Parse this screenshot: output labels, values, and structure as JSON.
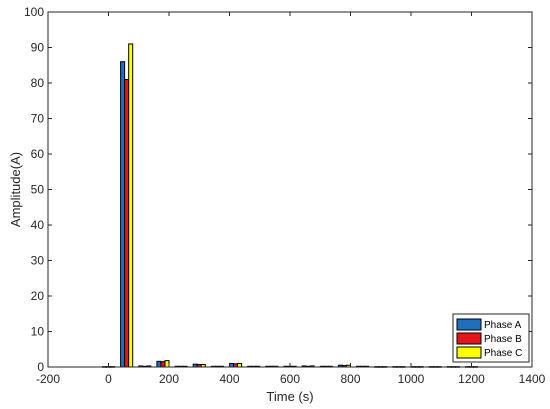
{
  "chart_data": {
    "type": "bar",
    "title": "",
    "xlabel": "Time (s)",
    "ylabel": "Amplitude(A)",
    "xlim": [
      -200,
      1400
    ],
    "ylim": [
      0,
      100
    ],
    "xticks": [
      -200,
      0,
      200,
      400,
      600,
      800,
      1000,
      1200,
      1400
    ],
    "yticks": [
      0,
      10,
      20,
      30,
      40,
      50,
      60,
      70,
      80,
      90,
      100
    ],
    "grid": false,
    "legend_position": "bottom-right",
    "bar_group_width": 40,
    "categories": [
      0,
      60,
      120,
      180,
      240,
      300,
      360,
      420,
      480,
      540,
      600,
      660,
      720,
      780,
      840,
      900,
      960,
      1020,
      1080,
      1140,
      1200
    ],
    "series": [
      {
        "name": "Phase A",
        "color": "#1f6fbf",
        "values": [
          0.1,
          86,
          0.3,
          1.6,
          0.2,
          0.8,
          0.2,
          1.0,
          0.2,
          0.2,
          0.2,
          0.3,
          0.2,
          0.5,
          0.2,
          0.1,
          0.1,
          0.1,
          0.1,
          0.1,
          0.1
        ]
      },
      {
        "name": "Phase B",
        "color": "#e3171b",
        "values": [
          0.1,
          81,
          0.2,
          1.5,
          0.2,
          0.7,
          0.2,
          0.9,
          0.2,
          0.2,
          0.2,
          0.2,
          0.2,
          0.4,
          0.2,
          0.1,
          0.1,
          0.1,
          0.1,
          0.1,
          0.1
        ]
      },
      {
        "name": "Phase C",
        "color": "#ffff00",
        "values": [
          0.1,
          91,
          0.3,
          1.8,
          0.2,
          0.7,
          0.2,
          1.0,
          0.2,
          0.2,
          0.2,
          0.3,
          0.2,
          0.5,
          0.2,
          0.1,
          0.1,
          0.1,
          0.1,
          0.1,
          0.1
        ]
      }
    ]
  }
}
